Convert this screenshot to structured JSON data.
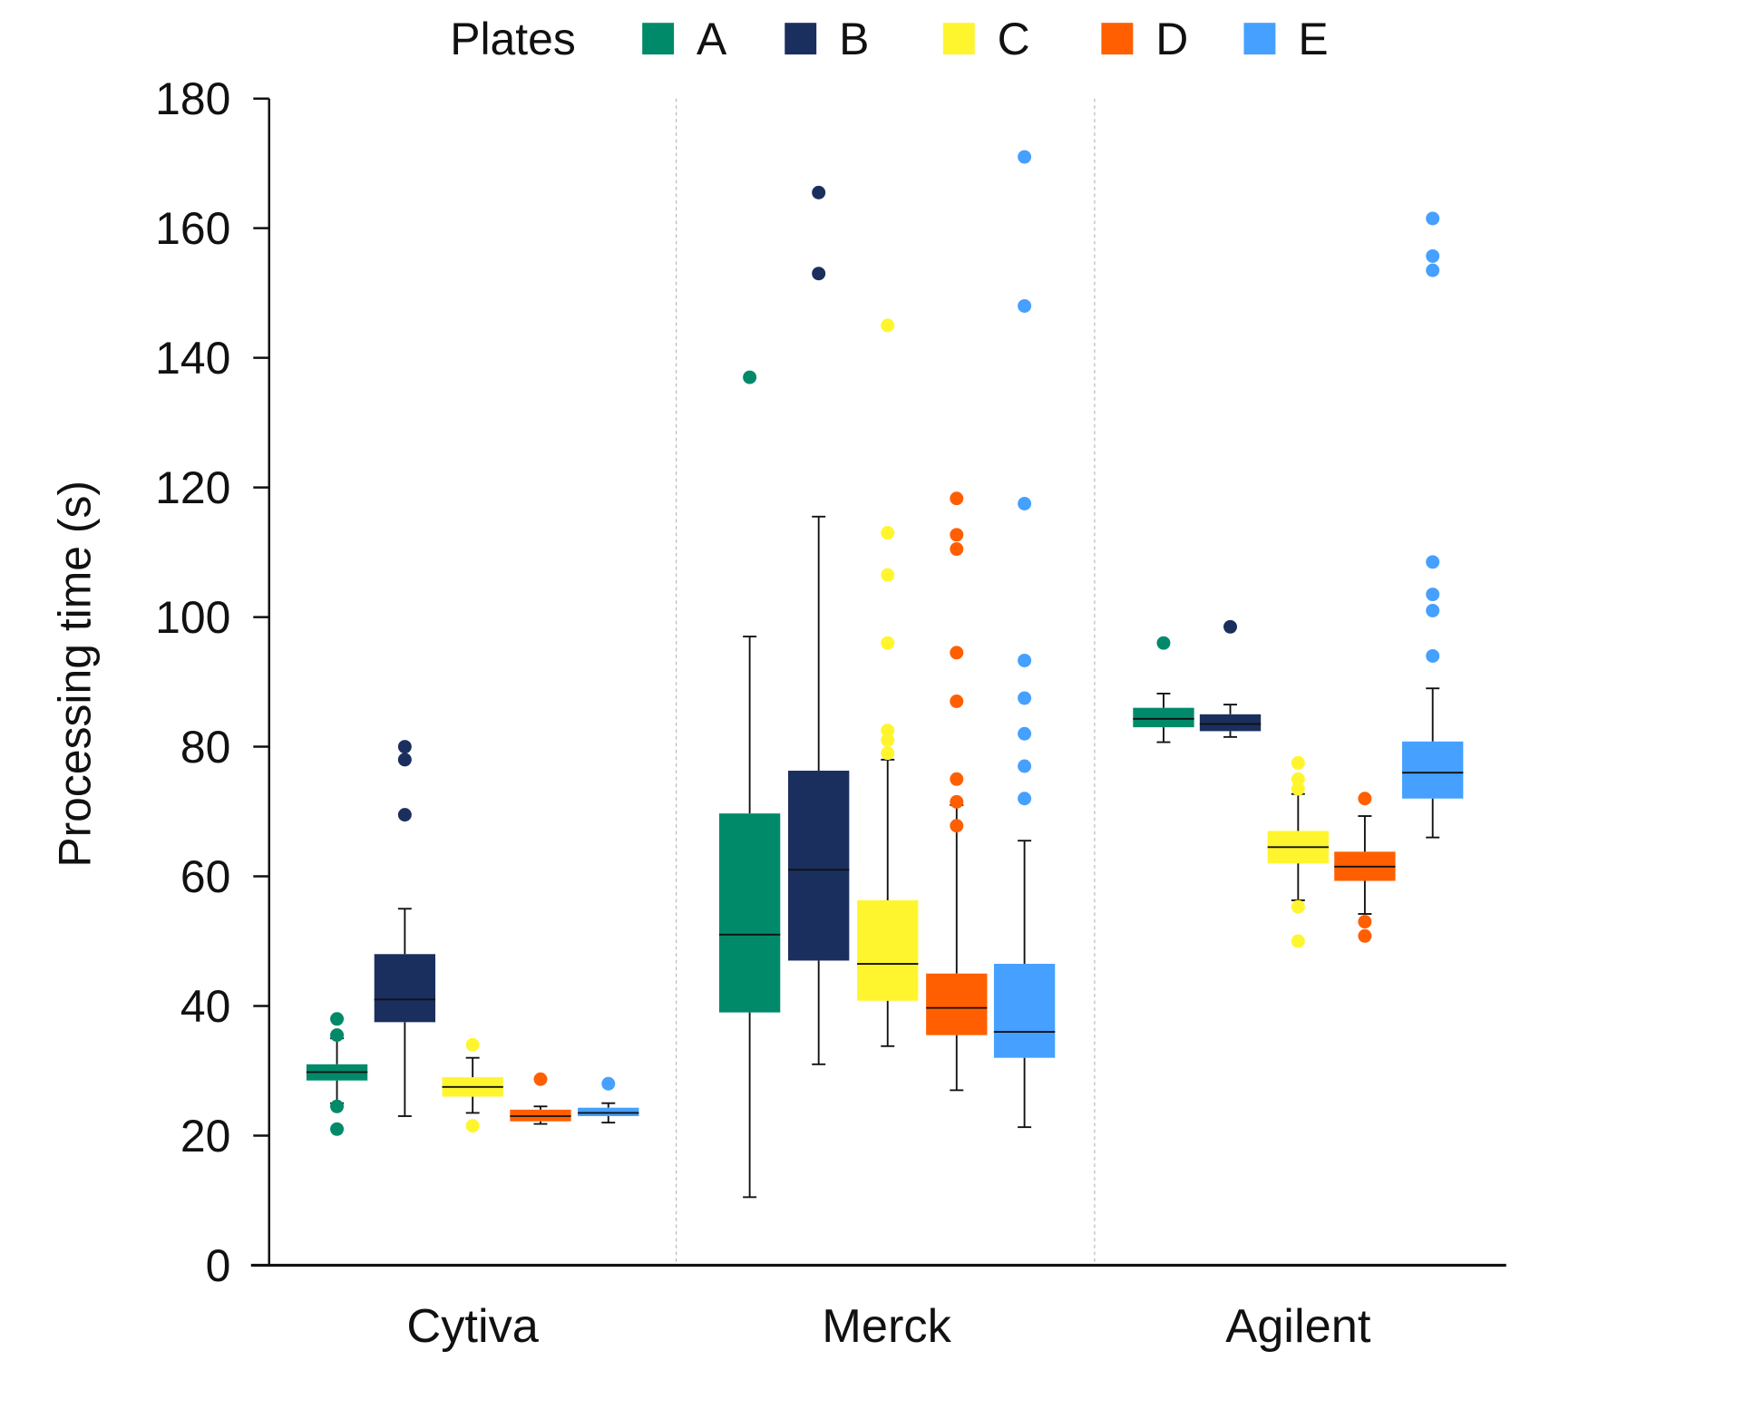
{
  "chart_data": {
    "type": "box",
    "title": "",
    "xlabel": "",
    "ylabel": "Processing time (s)",
    "ylim": [
      0,
      180
    ],
    "yticks": [
      0,
      20,
      40,
      60,
      80,
      100,
      120,
      140,
      160,
      180
    ],
    "grid": false,
    "legend": {
      "title": "Plates",
      "placement": "top"
    },
    "categories": [
      "Cytiva",
      "Merck",
      "Agilent"
    ],
    "series": [
      {
        "name": "A",
        "color": "#008a6a",
        "boxes": [
          {
            "q1": 28.5,
            "median": 29.8,
            "q3": 31,
            "whisker_low": 25,
            "whisker_high": 35,
            "outliers": [
              38,
              35.5,
              24.5,
              21
            ]
          },
          {
            "q1": 39,
            "median": 51,
            "q3": 69.7,
            "whisker_low": 10.5,
            "whisker_high": 97,
            "outliers": [
              137
            ]
          },
          {
            "q1": 83,
            "median": 84.3,
            "q3": 86,
            "whisker_low": 80.7,
            "whisker_high": 88.2,
            "outliers": [
              96
            ]
          }
        ]
      },
      {
        "name": "B",
        "color": "#1b2f5e",
        "boxes": [
          {
            "q1": 37.5,
            "median": 41,
            "q3": 48,
            "whisker_low": 23,
            "whisker_high": 55,
            "outliers": [
              69.5,
              78,
              80
            ]
          },
          {
            "q1": 47,
            "median": 61,
            "q3": 76.3,
            "whisker_low": 31,
            "whisker_high": 115.5,
            "outliers": [
              153,
              165.5
            ]
          },
          {
            "q1": 82.4,
            "median": 83.5,
            "q3": 85,
            "whisker_low": 81.5,
            "whisker_high": 86.5,
            "outliers": [
              98.5
            ]
          }
        ]
      },
      {
        "name": "C",
        "color": "#fff52e",
        "boxes": [
          {
            "q1": 26,
            "median": 27.5,
            "q3": 29,
            "whisker_low": 23.5,
            "whisker_high": 32,
            "outliers": [
              34,
              21.5
            ]
          },
          {
            "q1": 40.8,
            "median": 46.5,
            "q3": 56.3,
            "whisker_low": 33.8,
            "whisker_high": 78,
            "outliers": [
              79,
              81,
              82.5,
              96,
              106.5,
              113,
              145
            ]
          },
          {
            "q1": 62,
            "median": 64.5,
            "q3": 67,
            "whisker_low": 56.3,
            "whisker_high": 72.7,
            "outliers": [
              73.5,
              75,
              77.5,
              55.3,
              50
            ]
          }
        ]
      },
      {
        "name": "D",
        "color": "#ff5f00",
        "boxes": [
          {
            "q1": 22.2,
            "median": 23,
            "q3": 24,
            "whisker_low": 21.8,
            "whisker_high": 24.5,
            "outliers": [
              28.7
            ]
          },
          {
            "q1": 35.5,
            "median": 39.7,
            "q3": 45,
            "whisker_low": 27,
            "whisker_high": 71,
            "outliers": [
              67.8,
              71.5,
              75,
              87,
              94.5,
              110.5,
              112.7,
              118.3
            ]
          },
          {
            "q1": 59.3,
            "median": 61.5,
            "q3": 63.8,
            "whisker_low": 54.2,
            "whisker_high": 69.3,
            "outliers": [
              72,
              53,
              50.8
            ]
          }
        ]
      },
      {
        "name": "E",
        "color": "#45a0ff",
        "boxes": [
          {
            "q1": 23,
            "median": 23.5,
            "q3": 24.3,
            "whisker_low": 22,
            "whisker_high": 25,
            "outliers": [
              28
            ]
          },
          {
            "q1": 32,
            "median": 36,
            "q3": 46.5,
            "whisker_low": 21.3,
            "whisker_high": 65.5,
            "outliers": [
              72,
              77,
              82,
              87.5,
              93.3,
              117.5,
              148,
              171
            ]
          },
          {
            "q1": 72,
            "median": 76,
            "q3": 80.8,
            "whisker_low": 66,
            "whisker_high": 89,
            "outliers": [
              94,
              101,
              103.5,
              108.5,
              153.5,
              155.7,
              161.5
            ]
          }
        ]
      }
    ]
  }
}
